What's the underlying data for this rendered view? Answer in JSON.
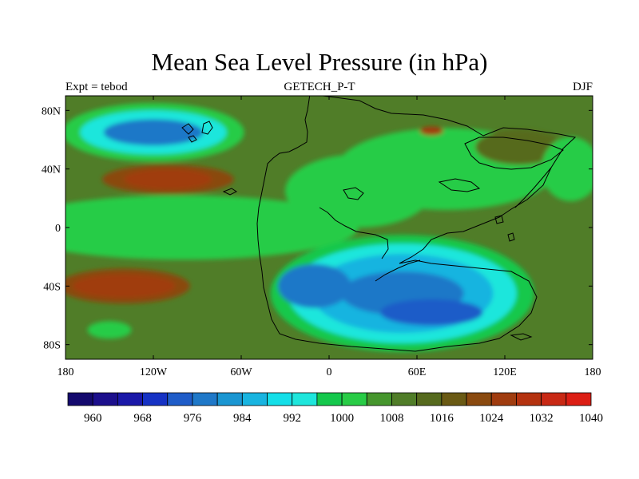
{
  "title": "Mean Sea Level Pressure (in hPa)",
  "subtitle_left": "Expt = tebod",
  "subtitle_center": "GETECH_P-T",
  "subtitle_right": "DJF",
  "lat_labels": [
    {
      "label": "80N",
      "lat": 80
    },
    {
      "label": "40N",
      "lat": 40
    },
    {
      "label": "0",
      "lat": 0
    },
    {
      "label": "40S",
      "lat": -40
    },
    {
      "label": "80S",
      "lat": -80
    }
  ],
  "lon_labels": [
    {
      "label": "180",
      "lon": -180
    },
    {
      "label": "120W",
      "lon": -120
    },
    {
      "label": "60W",
      "lon": -60
    },
    {
      "label": "0",
      "lon": 0
    },
    {
      "label": "60E",
      "lon": 60
    },
    {
      "label": "120E",
      "lon": 120
    },
    {
      "label": "180",
      "lon": 180
    }
  ],
  "colorbar": {
    "colors": [
      "#140a6e",
      "#1c0f8c",
      "#1a18a8",
      "#1632c4",
      "#1f5cc8",
      "#1f78c8",
      "#1a96d2",
      "#18b4e0",
      "#14dfe8",
      "#1ee6dc",
      "#14c84c",
      "#28cc46",
      "#46962d",
      "#507d28",
      "#566a1e",
      "#6a5a14",
      "#8a4a0f",
      "#a03c0f",
      "#b4320f",
      "#c82814",
      "#dc1e14"
    ],
    "labels": [
      {
        "text": "960",
        "boundary": 1
      },
      {
        "text": "968",
        "boundary": 3
      },
      {
        "text": "976",
        "boundary": 5
      },
      {
        "text": "984",
        "boundary": 7
      },
      {
        "text": "992",
        "boundary": 9
      },
      {
        "text": "1000",
        "boundary": 11
      },
      {
        "text": "1008",
        "boundary": 13
      },
      {
        "text": "1016",
        "boundary": 15
      },
      {
        "text": "1024",
        "boundary": 17
      },
      {
        "text": "1032",
        "boundary": 19
      },
      {
        "text": "1040",
        "boundary": 21
      }
    ]
  },
  "pressure_field": {
    "background_level": 13,
    "background_color": "#507d28",
    "features": [
      {
        "name": "north-pacific-low",
        "lon": -120,
        "lat": 65,
        "levels": [
          {
            "color": "#28cc46",
            "rlon": 62,
            "rlat": 20
          },
          {
            "color": "#1ee6dc",
            "rlon": 50,
            "rlat": 15
          },
          {
            "color": "#1f78c8",
            "rlon": 34,
            "rlat": 9
          }
        ]
      },
      {
        "name": "north-pacific-high",
        "lon": -110,
        "lat": 33,
        "levels": [
          {
            "color": "#8a4a0f",
            "rlon": 45,
            "rlat": 10
          },
          {
            "color": "#a03c0f",
            "rlon": 30,
            "rlat": 7
          }
        ]
      },
      {
        "name": "south-pacific-high",
        "lon": -140,
        "lat": -40,
        "levels": [
          {
            "color": "#8a4a0f",
            "rlon": 45,
            "rlat": 12
          },
          {
            "color": "#a03c0f",
            "rlon": 35,
            "rlat": 8
          }
        ]
      },
      {
        "name": "tropical-band",
        "lon": -100,
        "lat": 0,
        "levels": [
          {
            "color": "#28cc46",
            "rlon": 120,
            "rlat": 22
          }
        ]
      },
      {
        "name": "southern-continent-low",
        "lon": 50,
        "lat": -45,
        "levels": [
          {
            "color": "#14c84c",
            "rlon": 90,
            "rlat": 40
          },
          {
            "color": "#1ee6dc",
            "rlon": 78,
            "rlat": 34
          },
          {
            "color": "#18b4e0",
            "rlon": 62,
            "rlat": 27
          },
          {
            "color": "#1f78c8",
            "rlon": 42,
            "rlat": 15
          }
        ]
      },
      {
        "name": "central-low-cell",
        "lon": 70,
        "lat": -58,
        "levels": [
          {
            "color": "#1f5cc8",
            "rlon": 35,
            "rlat": 9
          }
        ]
      },
      {
        "name": "south-atlantic-low",
        "lon": -10,
        "lat": -40,
        "levels": [
          {
            "color": "#1f78c8",
            "rlon": 25,
            "rlat": 15
          }
        ]
      },
      {
        "name": "asia-green",
        "lon": 80,
        "lat": 40,
        "levels": [
          {
            "color": "#28cc46",
            "rlon": 75,
            "rlat": 28
          }
        ]
      },
      {
        "name": "north-africa-green",
        "lon": 20,
        "lat": 25,
        "levels": [
          {
            "color": "#28cc46",
            "rlon": 50,
            "rlat": 25
          }
        ]
      },
      {
        "name": "east-asia-high",
        "lon": 130,
        "lat": 55,
        "levels": [
          {
            "color": "#566a1e",
            "rlon": 30,
            "rlat": 12
          }
        ]
      },
      {
        "name": "asia-red-spot",
        "lon": 70,
        "lat": 66,
        "levels": [
          {
            "color": "#a03c0f",
            "rlon": 8,
            "rlat": 3
          }
        ]
      },
      {
        "name": "south-pacific-green",
        "lon": -150,
        "lat": -70,
        "levels": [
          {
            "color": "#28cc46",
            "rlon": 15,
            "rlat": 6
          }
        ]
      },
      {
        "name": "west-pacific-green",
        "lon": 165,
        "lat": 40,
        "levels": [
          {
            "color": "#28cc46",
            "rlon": 20,
            "rlat": 22
          }
        ]
      }
    ]
  }
}
